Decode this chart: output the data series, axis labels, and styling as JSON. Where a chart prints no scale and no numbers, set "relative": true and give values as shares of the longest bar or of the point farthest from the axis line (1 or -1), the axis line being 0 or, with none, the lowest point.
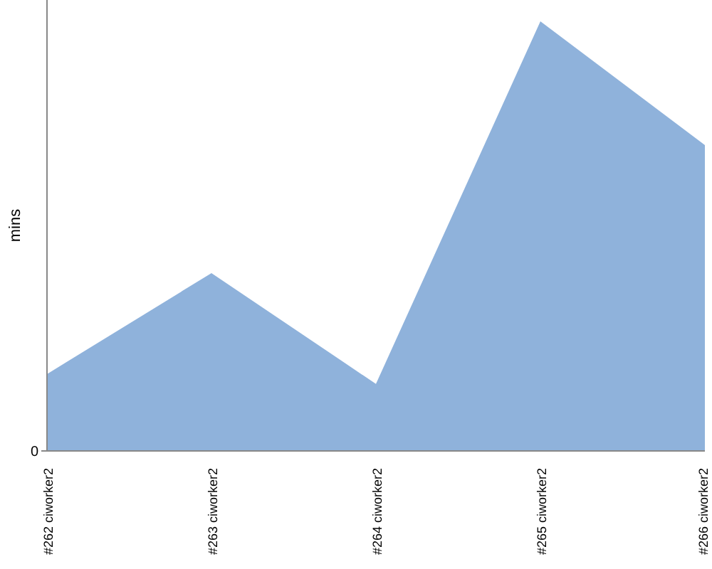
{
  "chart_data": {
    "type": "area",
    "relative": true,
    "ylabel": "mins",
    "annotations": [
      "0"
    ],
    "categories": [
      "#262 ciworker2",
      "#263 ciworker2",
      "#264 ciworker2",
      "#265 ciworker2",
      "#266 ciworker2"
    ],
    "series": [
      {
        "color": "#8fb2db",
        "values": [
          0.179,
          0.414,
          0.156,
          1,
          0.712
        ]
      }
    ]
  }
}
